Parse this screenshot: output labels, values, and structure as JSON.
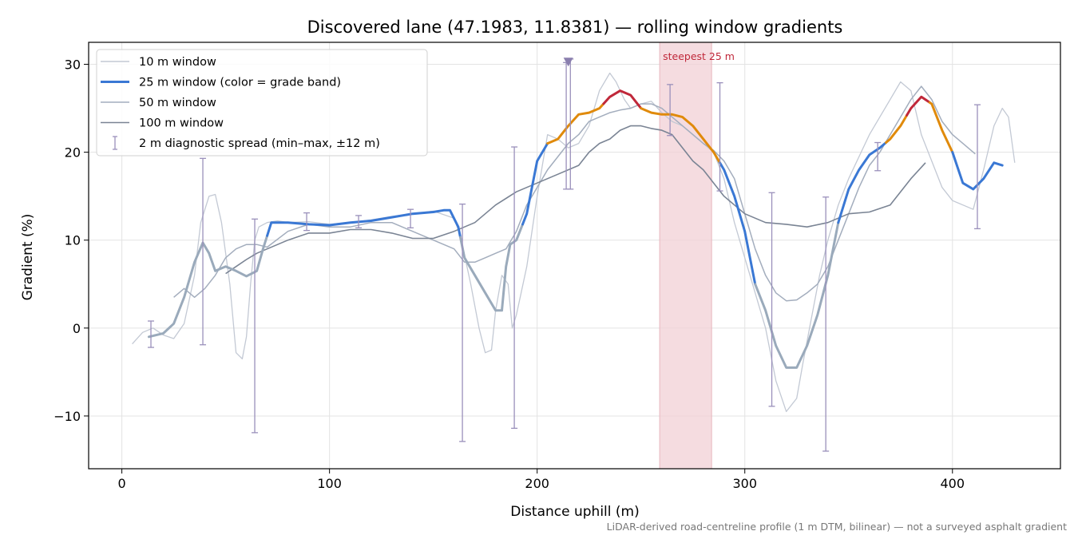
{
  "chart_data": {
    "type": "line",
    "title": "Discovered lane (47.1983, 11.8381) — rolling window gradients",
    "xlabel": "Distance uphill (m)",
    "ylabel": "Gradient (%)",
    "xlim": [
      -16,
      452
    ],
    "ylim": [
      -16,
      32.5
    ],
    "xticks": [
      0,
      100,
      200,
      300,
      400
    ],
    "xtick_labels": [
      "0",
      "100",
      "200",
      "300",
      "400"
    ],
    "yticks": [
      -10,
      0,
      10,
      20,
      30
    ],
    "ytick_labels": [
      "−10",
      "0",
      "10",
      "20",
      "30"
    ],
    "grid": true,
    "legend_position": "top-left",
    "footnote": "LiDAR-derived road-centreline profile (1 m DTM, bilinear) — not a surveyed asphalt gradient",
    "steepest_band": {
      "label": "steepest 25 m",
      "x_start": 259,
      "x_end": 284,
      "color": "#f2d0d5"
    },
    "peak_marker": {
      "x": 215,
      "y": 30.3,
      "color": "#8a7fae"
    },
    "grade_band_colors": {
      "easy": "#3a78d4",
      "moderate": "#e08a0b",
      "steep": "#c0283a",
      "negative": "#9aaabb"
    },
    "series": [
      {
        "name": "10 m window",
        "color": "#c3c9d4",
        "width": 1.3,
        "x": [
          5,
          10,
          15,
          20,
          25,
          30,
          35,
          38,
          42,
          45,
          48,
          52,
          55,
          58,
          60,
          62,
          64,
          66,
          70,
          75,
          80,
          90,
          100,
          110,
          120,
          130,
          140,
          150,
          160,
          163,
          168,
          172,
          175,
          178,
          180,
          183,
          186,
          188,
          190,
          195,
          200,
          205,
          210,
          215,
          220,
          225,
          230,
          235,
          238,
          242,
          245,
          250,
          255,
          260,
          265,
          270,
          275,
          280,
          285,
          290,
          295,
          300,
          305,
          310,
          315,
          320,
          325,
          328,
          332,
          336,
          340,
          345,
          350,
          355,
          360,
          365,
          370,
          375,
          380,
          385,
          390,
          395,
          400,
          405,
          410,
          415,
          420,
          424,
          427,
          430
        ],
        "y": [
          -1.8,
          -0.5,
          0,
          -0.8,
          -1.2,
          0.5,
          6,
          12,
          15,
          15.2,
          12,
          5,
          -2.8,
          -3.5,
          -1,
          5,
          10,
          11.5,
          12,
          12.2,
          12,
          12.1,
          11.8,
          12,
          12.3,
          12.7,
          13,
          13.3,
          12.5,
          10.5,
          5,
          0,
          -2.8,
          -2.5,
          2,
          6,
          5,
          0,
          1.5,
          7,
          15,
          22,
          21.5,
          20.5,
          21,
          23,
          27,
          29,
          28,
          26,
          25,
          25.5,
          25.8,
          24.5,
          23.5,
          23,
          22,
          21,
          20,
          17,
          12,
          8,
          4,
          0,
          -6,
          -9.5,
          -8,
          -4,
          1,
          6,
          10,
          14,
          17,
          19.5,
          22,
          24,
          26,
          28,
          27,
          22,
          19,
          16,
          14.5,
          14,
          13.5,
          18,
          23,
          25,
          24,
          18.8
        ]
      },
      {
        "name": "25 m window (color = grade band)",
        "color": "#3a78d4",
        "width": 3,
        "x": [
          13,
          20,
          25,
          30,
          35,
          39,
          42,
          45,
          50,
          55,
          60,
          65,
          68,
          72,
          80,
          90,
          100,
          110,
          120,
          130,
          140,
          150,
          155,
          158,
          162,
          165,
          170,
          175,
          180,
          183,
          185,
          187,
          190,
          195,
          200,
          205,
          210,
          215,
          220,
          225,
          230,
          235,
          240,
          245,
          250,
          255,
          260,
          265,
          270,
          275,
          280,
          285,
          290,
          295,
          300,
          305,
          310,
          315,
          320,
          325,
          330,
          335,
          340,
          345,
          350,
          355,
          360,
          365,
          370,
          375,
          380,
          385,
          390,
          395,
          400,
          405,
          410,
          415,
          420,
          424
        ],
        "y": [
          -1,
          -0.6,
          0.5,
          3.5,
          7.5,
          9.7,
          8.5,
          6.5,
          7,
          6.5,
          5.9,
          6.5,
          9,
          12,
          12,
          11.8,
          11.7,
          12,
          12.2,
          12.6,
          13,
          13.2,
          13.4,
          13.4,
          11.5,
          8,
          6,
          4,
          2,
          2,
          7,
          9.5,
          10,
          13,
          19,
          21,
          21.5,
          23,
          24.3,
          24.5,
          25,
          26.3,
          27,
          26.5,
          25,
          24.5,
          24.3,
          24.3,
          24,
          23,
          21.5,
          20,
          18,
          15,
          11,
          5,
          2,
          -2,
          -4.5,
          -4.5,
          -2,
          1.5,
          6,
          12,
          15.8,
          18,
          19.7,
          20.5,
          21.5,
          23,
          25,
          26.3,
          25.5,
          22.5,
          20,
          16.5,
          15.8,
          17,
          18.8,
          18.5
        ],
        "bands": [
          {
            "x_from": 13,
            "x_to": 70,
            "band": "negative"
          },
          {
            "x_from": 70,
            "x_to": 163,
            "band": "easy"
          },
          {
            "x_from": 163,
            "x_to": 193,
            "band": "negative"
          },
          {
            "x_from": 193,
            "x_to": 205,
            "band": "easy"
          },
          {
            "x_from": 205,
            "x_to": 232,
            "band": "moderate"
          },
          {
            "x_from": 232,
            "x_to": 250,
            "band": "steep"
          },
          {
            "x_from": 250,
            "x_to": 288,
            "band": "moderate"
          },
          {
            "x_from": 288,
            "x_to": 305,
            "band": "easy"
          },
          {
            "x_from": 305,
            "x_to": 345,
            "band": "negative"
          },
          {
            "x_from": 345,
            "x_to": 368,
            "band": "easy"
          },
          {
            "x_from": 368,
            "x_to": 378,
            "band": "moderate"
          },
          {
            "x_from": 378,
            "x_to": 389,
            "band": "steep"
          },
          {
            "x_from": 389,
            "x_to": 400,
            "band": "moderate"
          },
          {
            "x_from": 400,
            "x_to": 424,
            "band": "easy"
          }
        ]
      },
      {
        "name": "50 m window",
        "color": "#a3adbd",
        "width": 1.5,
        "x": [
          25,
          30,
          35,
          40,
          45,
          50,
          55,
          60,
          65,
          70,
          80,
          90,
          100,
          110,
          120,
          130,
          140,
          150,
          160,
          165,
          170,
          175,
          180,
          185,
          190,
          195,
          200,
          205,
          210,
          215,
          220,
          225,
          230,
          235,
          240,
          245,
          250,
          255,
          260,
          265,
          270,
          275,
          280,
          285,
          290,
          295,
          300,
          305,
          310,
          315,
          320,
          325,
          330,
          335,
          340,
          345,
          350,
          355,
          360,
          365,
          370,
          375,
          380,
          385,
          390,
          395,
          400,
          405,
          411
        ],
        "y": [
          3.5,
          4.5,
          3.5,
          4.5,
          6,
          8,
          9,
          9.5,
          9.5,
          9.2,
          11,
          11.8,
          11.5,
          11.5,
          12,
          12,
          11,
          10,
          9,
          7.5,
          7.5,
          8,
          8.5,
          9,
          11,
          14,
          16,
          18,
          19.5,
          21,
          22,
          23.5,
          24,
          24.5,
          24.8,
          25,
          25.5,
          25.5,
          25,
          24,
          23,
          22,
          21,
          20.2,
          19,
          17,
          13,
          9,
          6,
          4,
          3.1,
          3.2,
          4,
          5,
          7,
          10,
          13,
          16,
          18.5,
          20,
          22,
          24,
          26,
          27.5,
          26,
          23.5,
          22,
          21,
          19.8
        ]
      },
      {
        "name": "100 m window",
        "color": "#7a8494",
        "width": 1.6,
        "x": [
          50,
          55,
          60,
          65,
          70,
          80,
          90,
          100,
          110,
          120,
          130,
          140,
          150,
          160,
          170,
          180,
          190,
          200,
          210,
          220,
          225,
          230,
          235,
          240,
          245,
          250,
          255,
          260,
          265,
          270,
          275,
          280,
          285,
          290,
          295,
          300,
          305,
          310,
          320,
          330,
          340,
          350,
          360,
          370,
          380,
          387
        ],
        "y": [
          6.2,
          7,
          7.8,
          8.5,
          9,
          10,
          10.8,
          10.8,
          11.2,
          11.2,
          10.8,
          10.2,
          10.2,
          11,
          12,
          14,
          15.5,
          16.5,
          17.5,
          18.5,
          20,
          21,
          21.5,
          22.5,
          23,
          23,
          22.7,
          22.5,
          22,
          20.5,
          19,
          18,
          16.5,
          15,
          14,
          13,
          12.5,
          12,
          11.8,
          11.5,
          12,
          13,
          13.2,
          14,
          17,
          18.8
        ]
      }
    ],
    "error_bars": {
      "name": "2 m diagnostic spread (min–max, ±12 m)",
      "color": "#9a90bb",
      "points": [
        {
          "x": 14,
          "lo": -2.2,
          "hi": 0.8
        },
        {
          "x": 39,
          "lo": -1.9,
          "hi": 19.3
        },
        {
          "x": 64,
          "lo": -11.9,
          "hi": 12.4
        },
        {
          "x": 89,
          "lo": 11.1,
          "hi": 13.1
        },
        {
          "x": 114,
          "lo": 11.4,
          "hi": 12.8
        },
        {
          "x": 139,
          "lo": 11.4,
          "hi": 13.5
        },
        {
          "x": 164,
          "lo": -12.9,
          "hi": 14.1
        },
        {
          "x": 189,
          "lo": -11.4,
          "hi": 20.6
        },
        {
          "x": 214,
          "lo": 15.8,
          "hi": 30.2
        },
        {
          "x": 216,
          "lo": 15.8,
          "hi": 30.6
        },
        {
          "x": 264,
          "lo": 21.9,
          "hi": 27.7
        },
        {
          "x": 288,
          "lo": 15.6,
          "hi": 27.9
        },
        {
          "x": 313,
          "lo": -8.9,
          "hi": 15.4
        },
        {
          "x": 339,
          "lo": -14.0,
          "hi": 14.9
        },
        {
          "x": 364,
          "lo": 17.9,
          "hi": 21.1
        },
        {
          "x": 412,
          "lo": 11.3,
          "hi": 25.4
        }
      ]
    }
  }
}
